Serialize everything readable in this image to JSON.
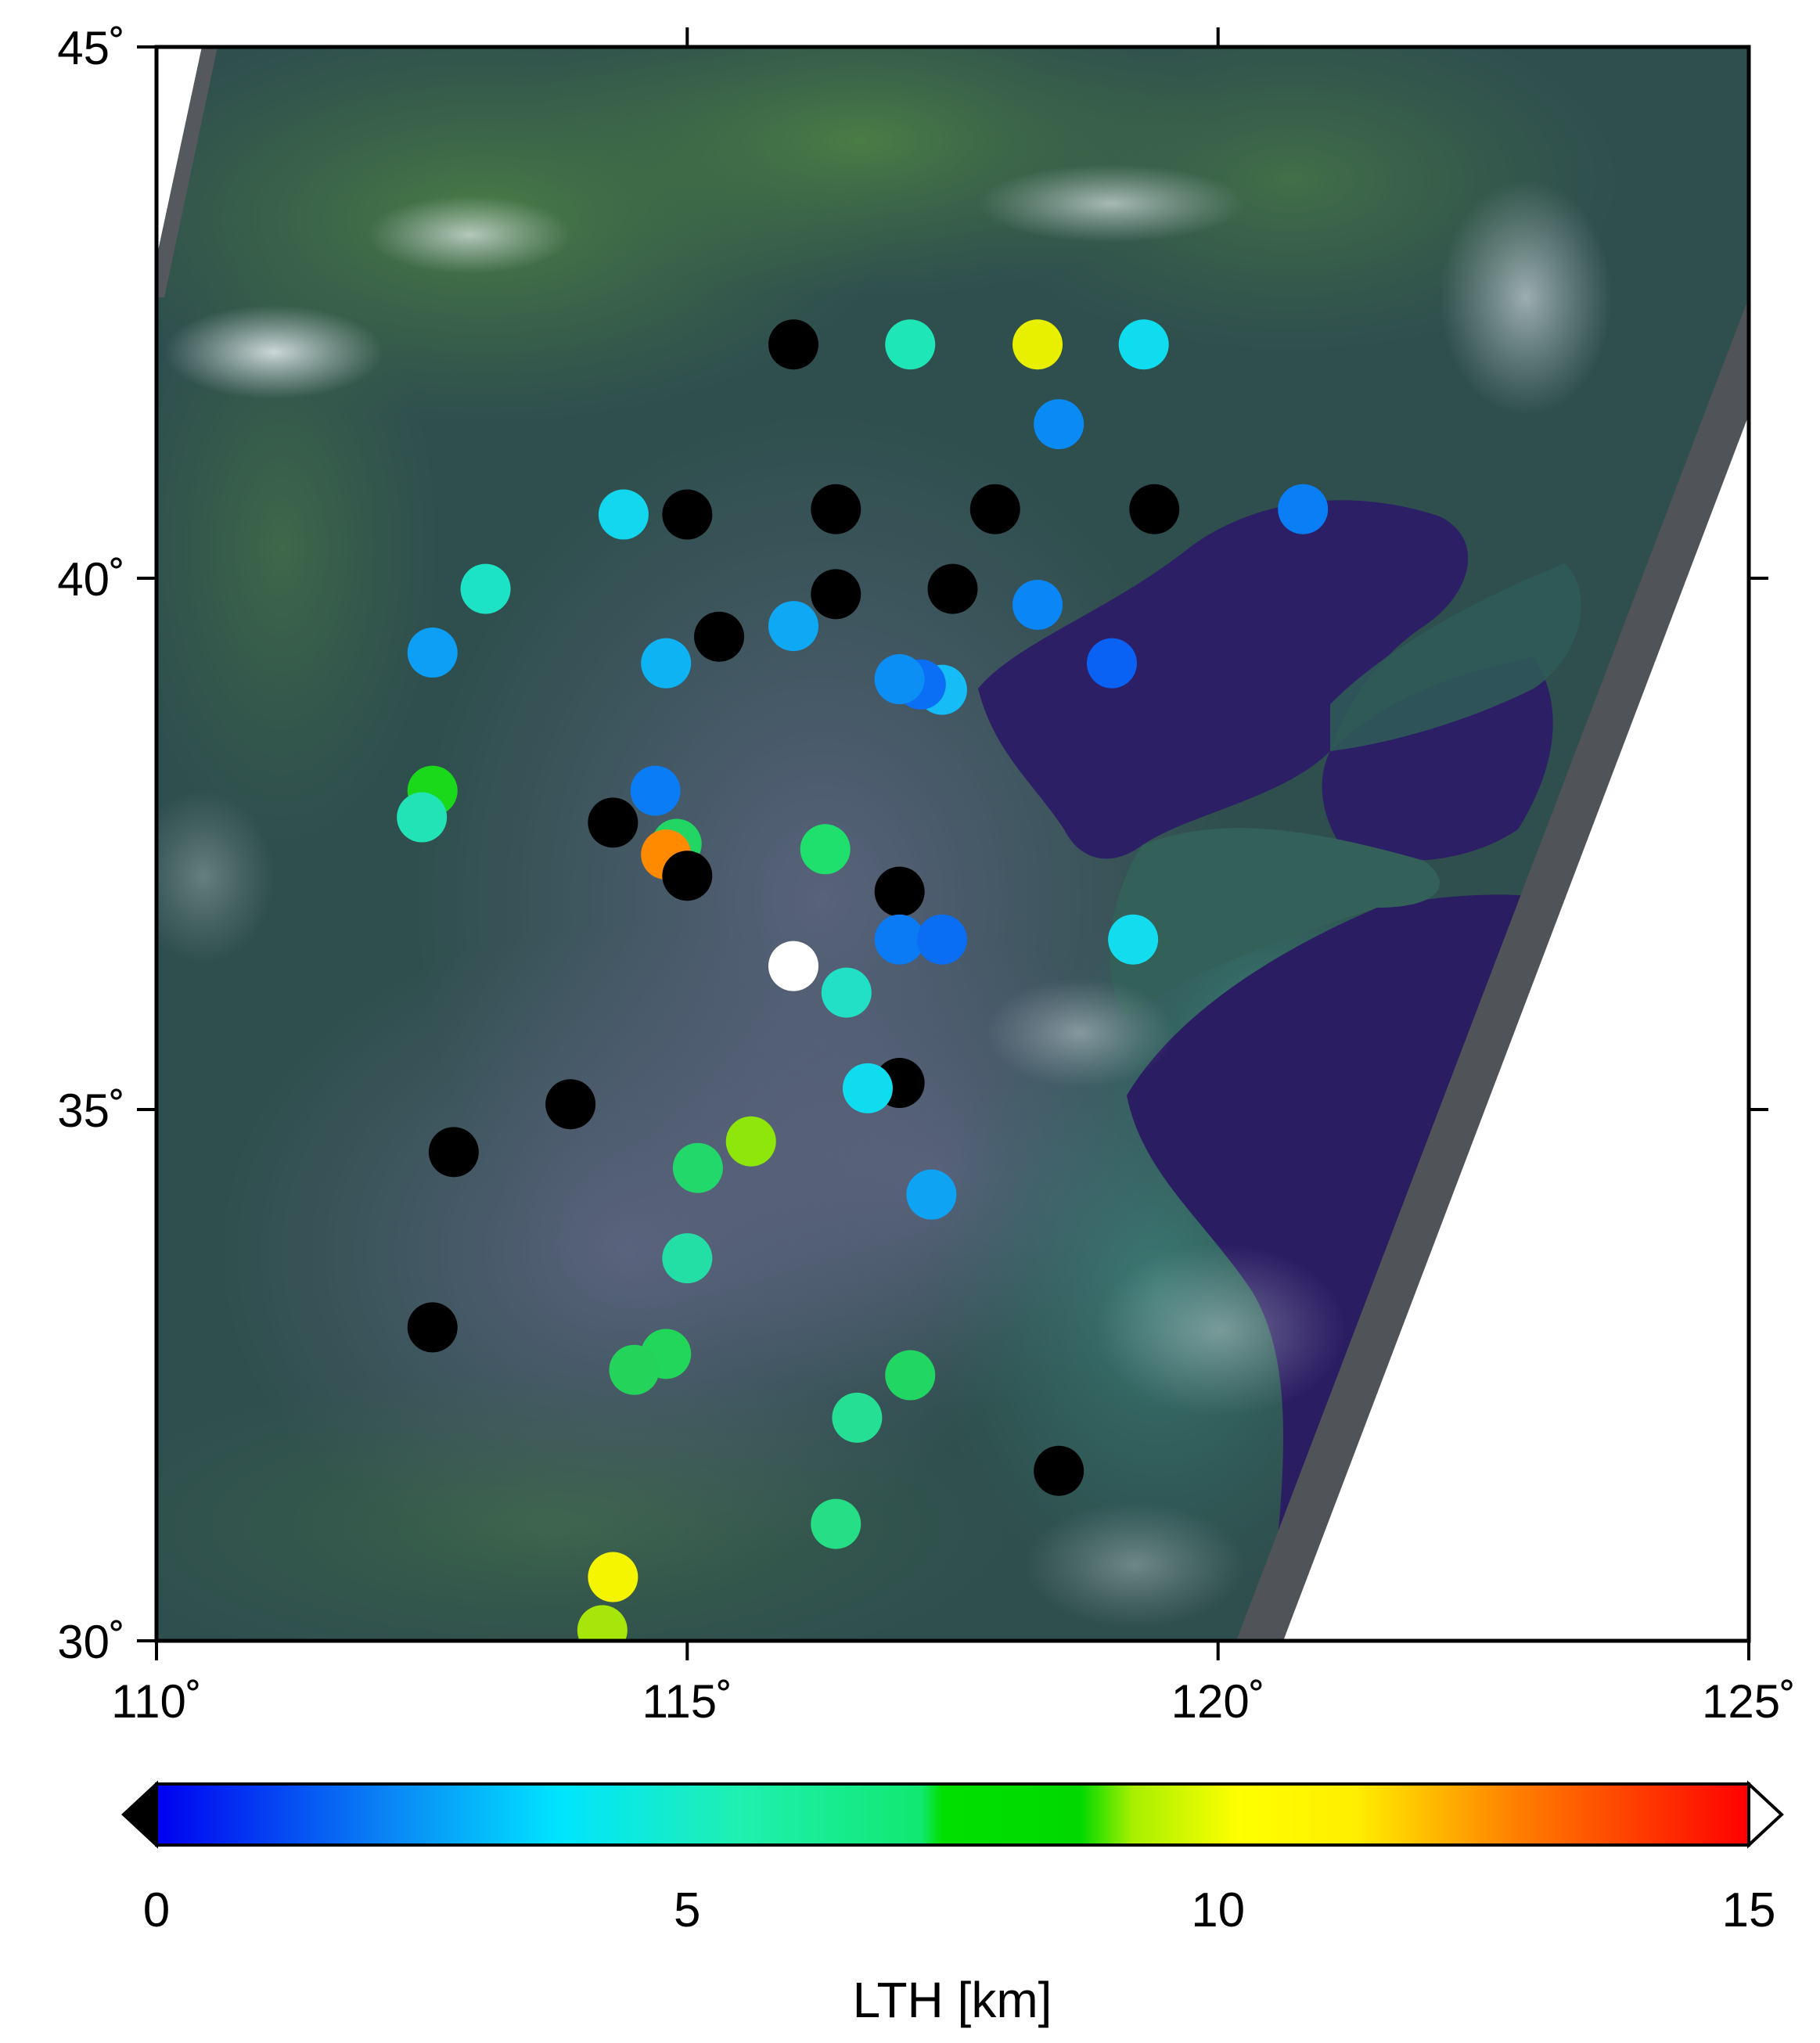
{
  "map": {
    "lon_range": [
      110,
      125
    ],
    "lat_range": [
      30,
      45
    ],
    "x_ticks": [
      {
        "value": 110,
        "label": "110˚"
      },
      {
        "value": 115,
        "label": "115˚"
      },
      {
        "value": 120,
        "label": "120˚"
      },
      {
        "value": 125,
        "label": "125˚"
      }
    ],
    "y_ticks": [
      {
        "value": 45,
        "label": "45˚"
      },
      {
        "value": 40,
        "label": "40˚"
      },
      {
        "value": 35,
        "label": "35˚"
      },
      {
        "value": 30,
        "label": "30˚"
      }
    ],
    "background": "true-color satellite image (land, sea, clouds)",
    "colors": {
      "land_dark": "#2b4a4a",
      "land_green": "#3f6e45",
      "sea": "#2c1f66",
      "haze": "#6f6a92",
      "swath_edge": "#5a5a60"
    }
  },
  "chart_data": {
    "type": "scatter",
    "title": "",
    "xlabel": "",
    "ylabel": "",
    "xlim": [
      110,
      125
    ],
    "ylim": [
      30,
      45
    ],
    "color_variable": "LTH [km]",
    "color_range": [
      0,
      15
    ],
    "points": [
      {
        "lon": 116.0,
        "lat": 42.2,
        "lth": "below-range",
        "color": "#000000"
      },
      {
        "lon": 117.1,
        "lat": 42.2,
        "lth": 5.5,
        "color": "#1fe6b6"
      },
      {
        "lon": 118.3,
        "lat": 42.2,
        "lth": 10.0,
        "color": "#e8f000"
      },
      {
        "lon": 119.3,
        "lat": 42.2,
        "lth": 4.2,
        "color": "#10dcef"
      },
      {
        "lon": 118.5,
        "lat": 41.45,
        "lth": 2.3,
        "color": "#0a8af5"
      },
      {
        "lon": 114.4,
        "lat": 40.6,
        "lth": 4.0,
        "color": "#12d7ef"
      },
      {
        "lon": 115.0,
        "lat": 40.6,
        "lth": "below-range",
        "color": "#000000"
      },
      {
        "lon": 116.4,
        "lat": 40.65,
        "lth": "below-range",
        "color": "#000000"
      },
      {
        "lon": 117.9,
        "lat": 40.65,
        "lth": "below-range",
        "color": "#000000"
      },
      {
        "lon": 119.4,
        "lat": 40.65,
        "lth": "below-range",
        "color": "#000000"
      },
      {
        "lon": 120.8,
        "lat": 40.65,
        "lth": 2.0,
        "color": "#0a7ef5"
      },
      {
        "lon": 113.1,
        "lat": 39.9,
        "lth": 5.0,
        "color": "#1ce3c6"
      },
      {
        "lon": 116.4,
        "lat": 39.85,
        "lth": "below-range",
        "color": "#000000"
      },
      {
        "lon": 117.5,
        "lat": 39.9,
        "lth": "below-range",
        "color": "#000000"
      },
      {
        "lon": 118.3,
        "lat": 39.75,
        "lth": 2.2,
        "color": "#0a86f6"
      },
      {
        "lon": 116.0,
        "lat": 39.55,
        "lth": 3.0,
        "color": "#0ea8f5"
      },
      {
        "lon": 115.3,
        "lat": 39.45,
        "lth": "below-range",
        "color": "#000000"
      },
      {
        "lon": 112.6,
        "lat": 39.3,
        "lth": 2.8,
        "color": "#0d9ef5"
      },
      {
        "lon": 114.8,
        "lat": 39.2,
        "lth": 3.3,
        "color": "#0eb3f4"
      },
      {
        "lon": 119.0,
        "lat": 39.2,
        "lth": 1.4,
        "color": "#0a62f5"
      },
      {
        "lon": 117.4,
        "lat": 38.95,
        "lth": 3.5,
        "color": "#15bcf6"
      },
      {
        "lon": 117.2,
        "lat": 39.0,
        "lth": 2.0,
        "color": "#0a6ff5"
      },
      {
        "lon": 117.0,
        "lat": 39.05,
        "lth": 2.5,
        "color": "#0c8ff5"
      },
      {
        "lon": 112.6,
        "lat": 38.0,
        "lth": 8.0,
        "color": "#1ad81a"
      },
      {
        "lon": 112.5,
        "lat": 37.75,
        "lth": 5.3,
        "color": "#22e3b5"
      },
      {
        "lon": 114.7,
        "lat": 38.0,
        "lth": 2.0,
        "color": "#0a7cf5"
      },
      {
        "lon": 114.3,
        "lat": 37.7,
        "lth": "below-range",
        "color": "#000000"
      },
      {
        "lon": 114.9,
        "lat": 37.5,
        "lth": 7.0,
        "color": "#22d664"
      },
      {
        "lon": 114.8,
        "lat": 37.4,
        "lth": 12.8,
        "color": "#ff8a00"
      },
      {
        "lon": 115.0,
        "lat": 37.2,
        "lth": "below-range",
        "color": "#000000"
      },
      {
        "lon": 116.3,
        "lat": 37.45,
        "lth": 6.8,
        "color": "#1fdf6d"
      },
      {
        "lon": 117.0,
        "lat": 37.05,
        "lth": "below-range",
        "color": "#000000"
      },
      {
        "lon": 117.0,
        "lat": 36.6,
        "lth": 2.0,
        "color": "#0a7af5"
      },
      {
        "lon": 117.4,
        "lat": 36.6,
        "lth": 1.8,
        "color": "#0a6ef5"
      },
      {
        "lon": 119.2,
        "lat": 36.6,
        "lth": 4.0,
        "color": "#14dcef"
      },
      {
        "lon": 116.0,
        "lat": 36.35,
        "lth": "white",
        "color": "#ffffff"
      },
      {
        "lon": 116.5,
        "lat": 36.1,
        "lth": 5.0,
        "color": "#22e0c6"
      },
      {
        "lon": 117.0,
        "lat": 35.25,
        "lth": "below-range",
        "color": "#000000"
      },
      {
        "lon": 116.7,
        "lat": 35.2,
        "lth": 4.2,
        "color": "#10dcef"
      },
      {
        "lon": 113.9,
        "lat": 35.05,
        "lth": "below-range",
        "color": "#000000"
      },
      {
        "lon": 112.8,
        "lat": 34.6,
        "lth": "below-range",
        "color": "#000000"
      },
      {
        "lon": 115.6,
        "lat": 34.7,
        "lth": 9.2,
        "color": "#8ee60a"
      },
      {
        "lon": 115.1,
        "lat": 34.45,
        "lth": 7.2,
        "color": "#22d86a"
      },
      {
        "lon": 117.3,
        "lat": 34.2,
        "lth": 2.8,
        "color": "#0fa3f4"
      },
      {
        "lon": 115.0,
        "lat": 33.6,
        "lth": 5.6,
        "color": "#24dfa5"
      },
      {
        "lon": 112.6,
        "lat": 32.95,
        "lth": "below-range",
        "color": "#000000"
      },
      {
        "lon": 114.8,
        "lat": 32.7,
        "lth": 7.5,
        "color": "#22d65a"
      },
      {
        "lon": 114.5,
        "lat": 32.55,
        "lth": 7.5,
        "color": "#24d45a"
      },
      {
        "lon": 117.1,
        "lat": 32.5,
        "lth": 7.2,
        "color": "#22d664"
      },
      {
        "lon": 116.6,
        "lat": 32.1,
        "lth": 6.0,
        "color": "#25df95"
      },
      {
        "lon": 118.5,
        "lat": 31.6,
        "lth": "below-range",
        "color": "#000000"
      },
      {
        "lon": 116.4,
        "lat": 31.1,
        "lth": 6.3,
        "color": "#25de85"
      },
      {
        "lon": 114.3,
        "lat": 30.6,
        "lth": 10.3,
        "color": "#f5f500"
      },
      {
        "lon": 114.2,
        "lat": 30.1,
        "lth": 9.3,
        "color": "#a6e60a"
      }
    ]
  },
  "colorbar": {
    "title": "LTH [km]",
    "min": 0,
    "max": 15,
    "ticks": [
      {
        "value": 0,
        "label": "0"
      },
      {
        "value": 5,
        "label": "5"
      },
      {
        "value": 10,
        "label": "10"
      },
      {
        "value": 15,
        "label": "15"
      }
    ],
    "stops": [
      {
        "value": 0,
        "color": "#0000f0"
      },
      {
        "value": 2.2,
        "color": "#0a86f5"
      },
      {
        "value": 3.8,
        "color": "#00e5ff"
      },
      {
        "value": 5.5,
        "color": "#20f0b0"
      },
      {
        "value": 7.2,
        "color": "#10e870"
      },
      {
        "value": 7.4,
        "color": "#00e000"
      },
      {
        "value": 8.7,
        "color": "#00d800"
      },
      {
        "value": 9.2,
        "color": "#a8f000"
      },
      {
        "value": 10.2,
        "color": "#ffff00"
      },
      {
        "value": 11.3,
        "color": "#ffee00"
      },
      {
        "value": 12.8,
        "color": "#ff8000"
      },
      {
        "value": 15,
        "color": "#ff0000"
      }
    ],
    "under_color": "#000000",
    "over_color": "#ffffff"
  }
}
